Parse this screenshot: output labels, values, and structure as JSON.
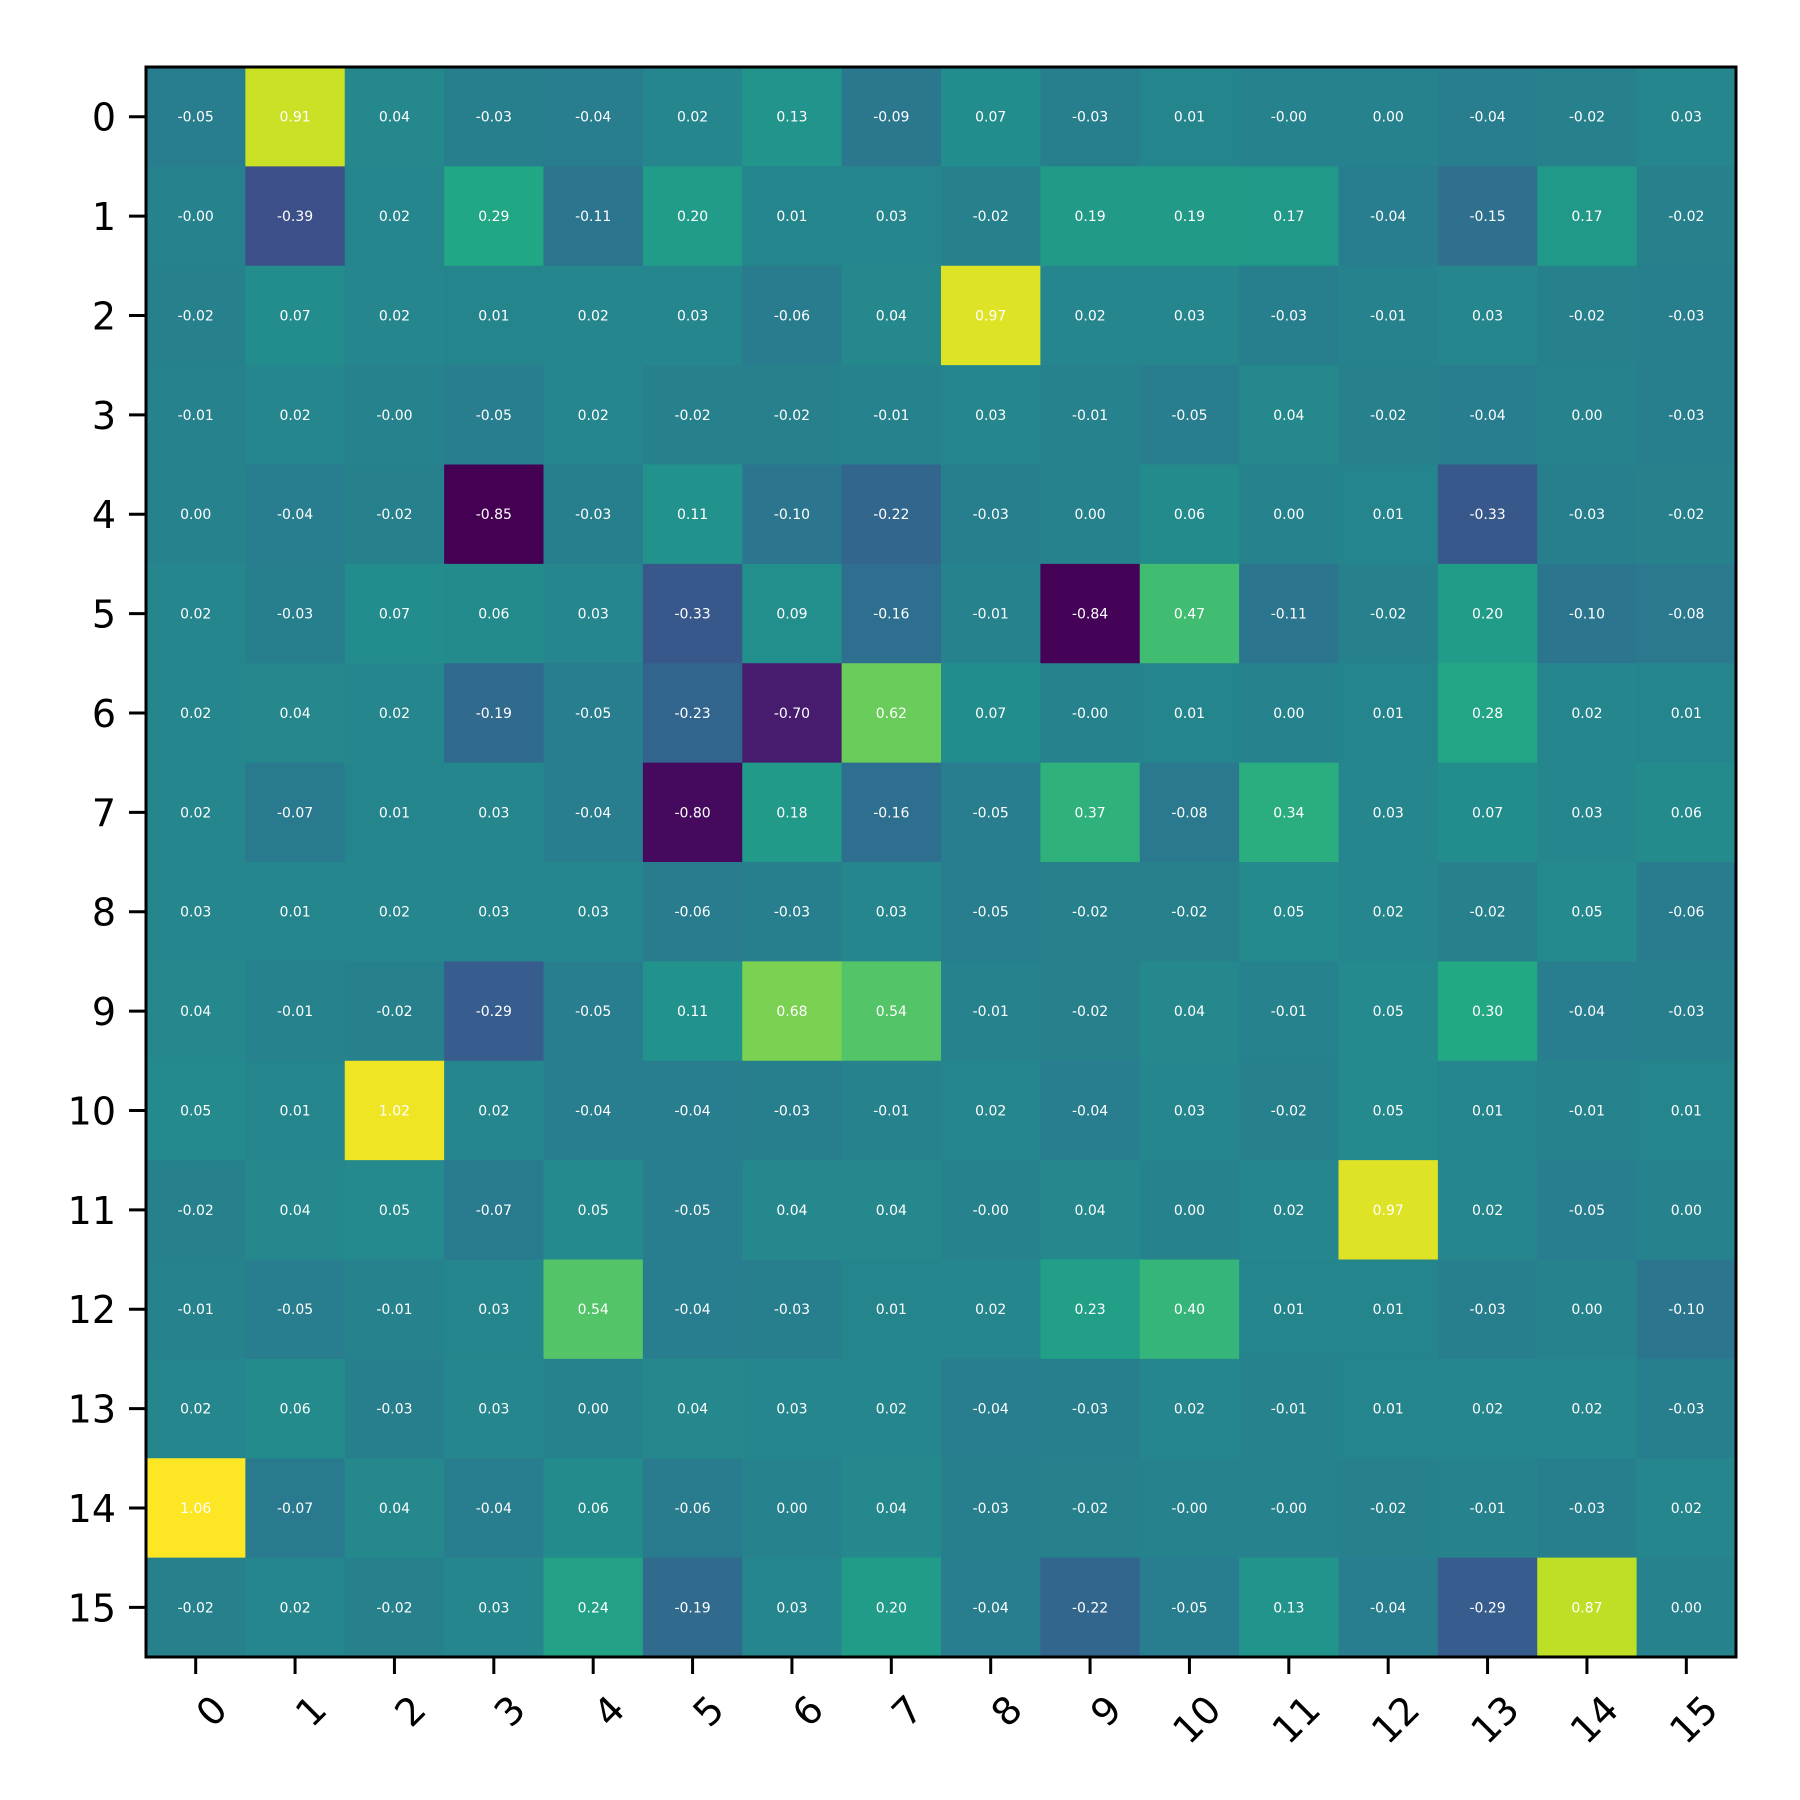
{
  "chart_data": {
    "type": "heatmap",
    "x_ticks": [
      "0",
      "1",
      "2",
      "3",
      "4",
      "5",
      "6",
      "7",
      "8",
      "9",
      "10",
      "11",
      "12",
      "13",
      "14",
      "15"
    ],
    "y_ticks": [
      "0",
      "1",
      "2",
      "3",
      "4",
      "5",
      "6",
      "7",
      "8",
      "9",
      "10",
      "11",
      "12",
      "13",
      "14",
      "15"
    ],
    "colormap": "viridis",
    "value_range": [
      -0.85,
      1.06
    ],
    "grid": false,
    "legend": "none",
    "values": [
      [
        -0.05,
        0.91,
        0.04,
        -0.03,
        -0.04,
        0.02,
        0.13,
        -0.09,
        0.07,
        -0.03,
        0.01,
        -0.0,
        0.0,
        -0.04,
        -0.02,
        0.03
      ],
      [
        -0.0,
        -0.39,
        0.02,
        0.29,
        -0.11,
        0.2,
        0.01,
        0.03,
        -0.02,
        0.19,
        0.19,
        0.17,
        -0.04,
        -0.15,
        0.17,
        -0.02
      ],
      [
        -0.02,
        0.07,
        0.02,
        0.01,
        0.02,
        0.03,
        -0.06,
        0.04,
        0.97,
        0.02,
        0.03,
        -0.03,
        -0.01,
        0.03,
        -0.02,
        -0.03
      ],
      [
        -0.01,
        0.02,
        -0.0,
        -0.05,
        0.02,
        -0.02,
        -0.02,
        -0.01,
        0.03,
        -0.01,
        -0.05,
        0.04,
        -0.02,
        -0.04,
        0.0,
        -0.03
      ],
      [
        0.0,
        -0.04,
        -0.02,
        -0.85,
        -0.03,
        0.11,
        -0.1,
        -0.22,
        -0.03,
        0.0,
        0.06,
        0.0,
        0.01,
        -0.33,
        -0.03,
        -0.02
      ],
      [
        0.02,
        -0.03,
        0.07,
        0.06,
        0.03,
        -0.33,
        0.09,
        -0.16,
        -0.01,
        -0.84,
        0.47,
        -0.11,
        -0.02,
        0.2,
        -0.1,
        -0.08
      ],
      [
        0.02,
        0.04,
        0.02,
        -0.19,
        -0.05,
        -0.23,
        -0.7,
        0.62,
        0.07,
        -0.0,
        0.01,
        0.0,
        0.01,
        0.28,
        0.02,
        0.01
      ],
      [
        0.02,
        -0.07,
        0.01,
        0.03,
        -0.04,
        -0.8,
        0.18,
        -0.16,
        -0.05,
        0.37,
        -0.08,
        0.34,
        0.03,
        0.07,
        0.03,
        0.06
      ],
      [
        0.03,
        0.01,
        0.02,
        0.03,
        0.03,
        -0.06,
        -0.03,
        0.03,
        -0.05,
        -0.02,
        -0.02,
        0.05,
        0.02,
        -0.02,
        0.05,
        -0.06
      ],
      [
        0.04,
        -0.01,
        -0.02,
        -0.29,
        -0.05,
        0.11,
        0.68,
        0.54,
        -0.01,
        -0.02,
        0.04,
        -0.01,
        0.05,
        0.3,
        -0.04,
        -0.03
      ],
      [
        0.05,
        0.01,
        1.02,
        0.02,
        -0.04,
        -0.04,
        -0.03,
        -0.01,
        0.02,
        -0.04,
        0.03,
        -0.02,
        0.05,
        0.01,
        -0.01,
        0.01
      ],
      [
        -0.02,
        0.04,
        0.05,
        -0.07,
        0.05,
        -0.05,
        0.04,
        0.04,
        -0.0,
        0.04,
        0.0,
        0.02,
        0.97,
        0.02,
        -0.05,
        0.0
      ],
      [
        -0.01,
        -0.05,
        -0.01,
        0.03,
        0.54,
        -0.04,
        -0.03,
        0.01,
        0.02,
        0.23,
        0.4,
        0.01,
        0.01,
        -0.03,
        0.0,
        -0.1
      ],
      [
        0.02,
        0.06,
        -0.03,
        0.03,
        0.0,
        0.04,
        0.03,
        0.02,
        -0.04,
        -0.03,
        0.02,
        -0.01,
        0.01,
        0.02,
        0.02,
        -0.03
      ],
      [
        1.06,
        -0.07,
        0.04,
        -0.04,
        0.06,
        -0.06,
        0.0,
        0.04,
        -0.03,
        -0.02,
        -0.0,
        -0.0,
        -0.02,
        -0.01,
        -0.03,
        0.02
      ],
      [
        -0.02,
        0.02,
        -0.02,
        0.03,
        0.24,
        -0.19,
        0.03,
        0.2,
        -0.04,
        -0.22,
        -0.05,
        0.13,
        -0.04,
        -0.29,
        0.87,
        0.0
      ]
    ]
  }
}
